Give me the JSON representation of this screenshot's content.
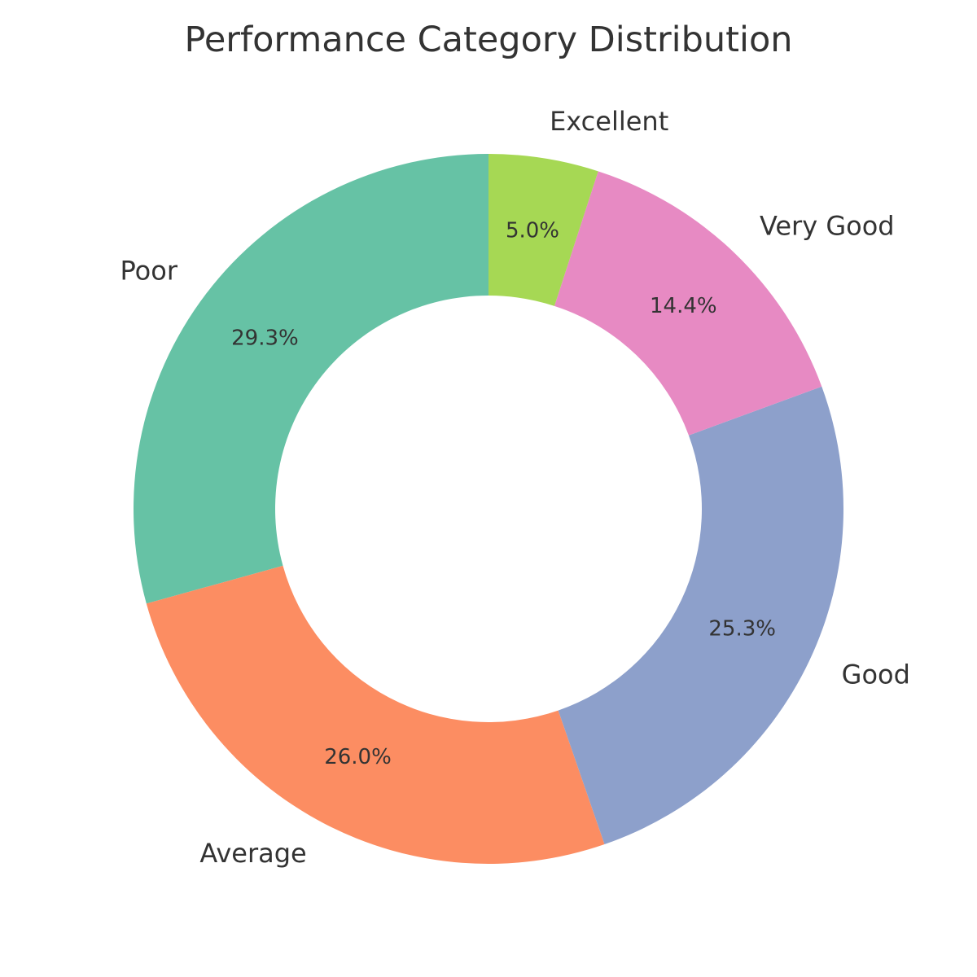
{
  "chart_data": {
    "type": "pie",
    "title": "Performance Category Distribution",
    "donut": true,
    "start_angle_deg": 90,
    "direction": "counterclockwise",
    "categories": [
      "Poor",
      "Average",
      "Good",
      "Very Good",
      "Excellent"
    ],
    "values": [
      29.3,
      26.0,
      25.3,
      14.4,
      5.0
    ],
    "value_labels": [
      "29.3%",
      "26.0%",
      "25.3%",
      "14.4%",
      "5.0%"
    ],
    "colors": [
      "#66c2a5",
      "#fc8d62",
      "#8da0cb",
      "#e78ac3",
      "#a6d854"
    ],
    "legend": false
  }
}
